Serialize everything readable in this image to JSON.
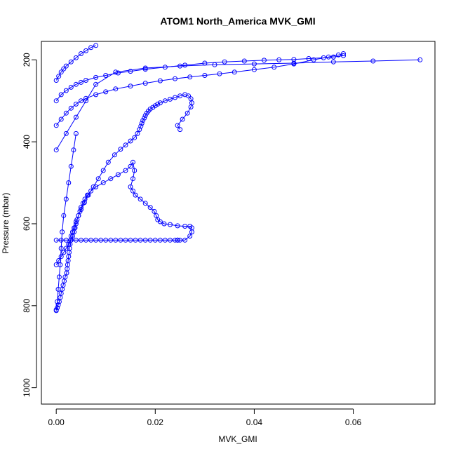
{
  "chart_data": {
    "type": "scatter",
    "title": "ATOM1 North_America MVK_GMI",
    "xlabel": "MVK_GMI",
    "ylabel": "Pressure (mbar)",
    "xlim": [
      -0.003,
      0.0765
    ],
    "ylim": [
      1040,
      155
    ],
    "y_reversed": true,
    "grid": false,
    "x_ticks": [
      0.0,
      0.02,
      0.04,
      0.06
    ],
    "x_tick_labels": [
      "0.00",
      "0.02",
      "0.04",
      "0.06"
    ],
    "y_ticks": [
      200,
      400,
      600,
      800,
      1000
    ],
    "y_tick_labels": [
      "200",
      "400",
      "600",
      "800",
      "1000"
    ],
    "marker": "open-circle",
    "connected": true,
    "color": "#0000ff",
    "series": [
      {
        "x": [
          0.0,
          0.0002,
          0.0004,
          0.0006,
          0.0008,
          0.001,
          0.0012,
          0.0014,
          0.0016,
          0.0018,
          0.0021,
          0.0022,
          0.0023,
          0.0024,
          0.0025,
          0.0026,
          0.0027,
          0.0028,
          0.0029,
          0.003,
          0.0033,
          0.0036,
          0.004,
          0.0045,
          0.005,
          0.0057,
          0.0065,
          0.0075,
          0.0085,
          0.0095,
          0.0105,
          0.0118,
          0.013,
          0.014,
          0.015,
          0.0158,
          0.0164,
          0.0168,
          0.0171,
          0.0173,
          0.0175,
          0.0178,
          0.018,
          0.0183,
          0.0186,
          0.019,
          0.0195,
          0.02,
          0.0205,
          0.021,
          0.022,
          0.023,
          0.024,
          0.025,
          0.026,
          0.0267,
          0.0272,
          0.0274,
          0.0272,
          0.0265,
          0.0255,
          0.0245,
          0.025
        ],
        "y": [
          810,
          805,
          798,
          790,
          780,
          770,
          760,
          750,
          740,
          730,
          720,
          710,
          700,
          690,
          680,
          670,
          660,
          650,
          640,
          630,
          620,
          610,
          595,
          580,
          565,
          548,
          530,
          510,
          490,
          470,
          450,
          432,
          418,
          408,
          398,
          390,
          380,
          370,
          362,
          355,
          348,
          342,
          336,
          330,
          325,
          320,
          316,
          312,
          308,
          305,
          300,
          296,
          292,
          288,
          285,
          288,
          295,
          305,
          315,
          330,
          345,
          360,
          370
        ]
      },
      {
        "x": [
          0.0,
          0.0005,
          0.001,
          0.0015,
          0.002,
          0.0025,
          0.003,
          0.0033,
          0.0036,
          0.0038,
          0.004,
          0.0042,
          0.0045,
          0.0048,
          0.005,
          0.0054,
          0.0058,
          0.0063,
          0.007,
          0.008,
          0.0095,
          0.011,
          0.0125,
          0.014,
          0.015,
          0.0155,
          0.0158,
          0.0155,
          0.015,
          0.0155,
          0.016,
          0.017,
          0.018,
          0.019,
          0.0198,
          0.0202,
          0.0205,
          0.021,
          0.0218,
          0.023,
          0.0245,
          0.026,
          0.027,
          0.0274,
          0.0274,
          0.027,
          0.026,
          0.025,
          0.0245
        ],
        "y": [
          700,
          690,
          680,
          670,
          660,
          650,
          640,
          630,
          620,
          610,
          600,
          590,
          580,
          570,
          560,
          550,
          540,
          530,
          520,
          510,
          500,
          490,
          480,
          470,
          460,
          450,
          470,
          490,
          510,
          520,
          530,
          540,
          550,
          560,
          570,
          580,
          590,
          595,
          600,
          602,
          605,
          606,
          606,
          610,
          620,
          630,
          640,
          640,
          640
        ]
      },
      {
        "x": [
          0.0,
          0.001,
          0.002,
          0.003,
          0.004,
          0.005,
          0.006,
          0.007,
          0.008,
          0.009,
          0.01,
          0.011,
          0.012,
          0.013,
          0.014,
          0.015,
          0.016,
          0.017,
          0.018,
          0.019,
          0.02,
          0.021,
          0.022,
          0.023,
          0.024,
          0.0245
        ],
        "y": [
          640,
          640,
          640,
          640,
          640,
          640,
          640,
          640,
          640,
          640,
          640,
          640,
          640,
          640,
          640,
          640,
          640,
          640,
          640,
          640,
          640,
          640,
          640,
          640,
          640,
          640
        ]
      },
      {
        "x": [
          0.0,
          0.001,
          0.002,
          0.003,
          0.004,
          0.005,
          0.006,
          0.008,
          0.01,
          0.012,
          0.015,
          0.018,
          0.021,
          0.024,
          0.027,
          0.03,
          0.033,
          0.036,
          0.04,
          0.044,
          0.048,
          0.052,
          0.055,
          0.057,
          0.058
        ],
        "y": [
          360,
          345,
          330,
          318,
          308,
          300,
          294,
          285,
          278,
          271,
          264,
          257,
          251,
          246,
          242,
          238,
          234,
          230,
          224,
          218,
          210,
          200,
          193,
          188,
          185
        ]
      },
      {
        "x": [
          0.0,
          0.001,
          0.002,
          0.003,
          0.004,
          0.005,
          0.006,
          0.008,
          0.01,
          0.0125,
          0.015,
          0.018,
          0.022,
          0.026,
          0.03,
          0.034,
          0.038,
          0.042,
          0.045,
          0.048,
          0.051,
          0.054,
          0.056,
          0.058
        ],
        "y": [
          300,
          285,
          275,
          267,
          260,
          255,
          250,
          243,
          238,
          232,
          228,
          223,
          218,
          213,
          208,
          205,
          203,
          201,
          200,
          199,
          197,
          195,
          193,
          190
        ]
      },
      {
        "x": [
          0.0,
          0.002,
          0.004,
          0.006,
          0.008,
          0.012,
          0.018,
          0.025,
          0.032,
          0.04,
          0.048,
          0.056,
          0.064,
          0.0735
        ],
        "y": [
          420,
          380,
          340,
          300,
          260,
          230,
          220,
          215,
          212,
          210,
          208,
          205,
          203,
          200
        ]
      },
      {
        "x": [
          0.0,
          0.0005,
          0.001,
          0.0015,
          0.002,
          0.003,
          0.004,
          0.005,
          0.006,
          0.007,
          0.008
        ],
        "y": [
          250,
          240,
          230,
          222,
          215,
          205,
          195,
          185,
          178,
          170,
          165
        ]
      },
      {
        "x": [
          0.0,
          0.0002,
          0.0004,
          0.0006,
          0.0008,
          0.001,
          0.0012,
          0.0015,
          0.002,
          0.0025,
          0.003,
          0.0035,
          0.004
        ],
        "y": [
          812,
          790,
          760,
          730,
          700,
          660,
          620,
          580,
          540,
          500,
          460,
          420,
          380
        ]
      }
    ]
  }
}
